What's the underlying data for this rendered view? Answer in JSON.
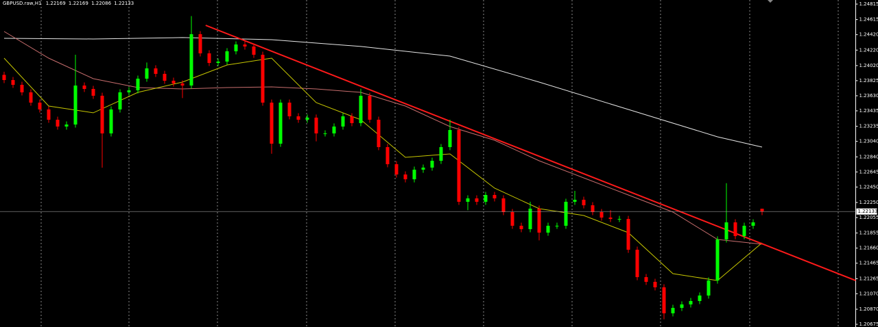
{
  "chart_data": {
    "type": "candlestick",
    "symbol": "GBPUSD.raw,H1",
    "up_color": "#00ff00",
    "down_color": "#ff0000",
    "ylim": [
      1.2064,
      1.24868
    ],
    "yticks": [
      {
        "value": 1.24815,
        "label": "1.24815"
      },
      {
        "value": 1.24615,
        "label": "1.24615"
      },
      {
        "value": 1.2442,
        "label": "1.24420"
      },
      {
        "value": 1.2422,
        "label": "1.24220"
      },
      {
        "value": 1.2402,
        "label": "1.24020"
      },
      {
        "value": 1.23825,
        "label": "1.23825"
      },
      {
        "value": 1.2363,
        "label": "1.23630"
      },
      {
        "value": 1.23435,
        "label": "1.23435"
      },
      {
        "value": 1.23235,
        "label": "1.23235"
      },
      {
        "value": 1.2304,
        "label": "1.23040"
      },
      {
        "value": 1.2284,
        "label": "1.22840"
      },
      {
        "value": 1.22645,
        "label": "1.22645"
      },
      {
        "value": 1.2245,
        "label": "1.22450"
      },
      {
        "value": 1.2225,
        "label": "1.22250"
      },
      {
        "value": 1.22055,
        "label": "1.22055"
      },
      {
        "value": 1.21855,
        "label": "1.21855"
      },
      {
        "value": 1.2166,
        "label": "1.21660"
      },
      {
        "value": 1.21465,
        "label": "1.21465"
      },
      {
        "value": 1.21265,
        "label": "1.21265"
      },
      {
        "value": 1.2107,
        "label": "1.21070"
      },
      {
        "value": 1.2087,
        "label": "1.20870"
      },
      {
        "value": 1.20675,
        "label": "1.20675"
      }
    ],
    "candles": [
      [
        1.239,
        1.2394,
        1.23793,
        1.23833
      ],
      [
        1.23833,
        1.23873,
        1.23731,
        1.23771
      ],
      [
        1.23771,
        1.23811,
        1.23634,
        1.23674
      ],
      [
        1.23674,
        1.23714,
        1.23501,
        1.23541
      ],
      [
        1.23541,
        1.23581,
        1.23413,
        1.23453
      ],
      [
        1.23453,
        1.23493,
        1.2328,
        1.2332
      ],
      [
        1.2332,
        1.2336,
        1.23192,
        1.23232
      ],
      [
        1.23232,
        1.23298,
        1.23192,
        1.23258
      ],
      [
        1.23258,
        1.2416,
        1.23218,
        1.23762
      ],
      [
        1.23762,
        1.23802,
        1.23678,
        1.23718
      ],
      [
        1.23718,
        1.23758,
        1.2359,
        1.2363
      ],
      [
        1.2363,
        1.2367,
        1.227,
        1.23143
      ],
      [
        1.23143,
        1.23493,
        1.23103,
        1.23453
      ],
      [
        1.23453,
        1.23714,
        1.23413,
        1.23674
      ],
      [
        1.23674,
        1.2374,
        1.23634,
        1.237
      ],
      [
        1.237,
        1.23891,
        1.2366,
        1.23851
      ],
      [
        1.23851,
        1.2406,
        1.23811,
        1.23984
      ],
      [
        1.23984,
        1.24024,
        1.23873,
        1.23913
      ],
      [
        1.23913,
        1.23953,
        1.23784,
        1.23824
      ],
      [
        1.23824,
        1.23864,
        1.23749,
        1.23789
      ],
      [
        1.23789,
        1.23829,
        1.236,
        1.23762
      ],
      [
        1.23762,
        1.2466,
        1.23722,
        1.24426
      ],
      [
        1.24426,
        1.24466,
        1.24138,
        1.24178
      ],
      [
        1.24178,
        1.24218,
        1.24014,
        1.24054
      ],
      [
        1.24054,
        1.24112,
        1.24014,
        1.24072
      ],
      [
        1.24072,
        1.24245,
        1.24032,
        1.24205
      ],
      [
        1.24205,
        1.24333,
        1.24165,
        1.24293
      ],
      [
        1.24293,
        1.24333,
        1.24227,
        1.24267
      ],
      [
        1.24267,
        1.24307,
        1.2412,
        1.2416
      ],
      [
        1.2416,
        1.242,
        1.23501,
        1.23541
      ],
      [
        1.23541,
        1.23581,
        1.2288,
        1.2301
      ],
      [
        1.2301,
        1.23581,
        1.2297,
        1.23541
      ],
      [
        1.23541,
        1.23581,
        1.23324,
        1.23364
      ],
      [
        1.23364,
        1.23404,
        1.2328,
        1.2332
      ],
      [
        1.2332,
        1.23387,
        1.2328,
        1.23347
      ],
      [
        1.23347,
        1.23387,
        1.2304,
        1.23143
      ],
      [
        1.23143,
        1.23183,
        1.23103,
        1.23143
      ],
      [
        1.23143,
        1.23272,
        1.23103,
        1.23232
      ],
      [
        1.23232,
        1.23404,
        1.23192,
        1.23364
      ],
      [
        1.23364,
        1.23404,
        1.23236,
        1.23276
      ],
      [
        1.23276,
        1.2372,
        1.23236,
        1.2363
      ],
      [
        1.2363,
        1.2367,
        1.2328,
        1.2332
      ],
      [
        1.2332,
        1.2336,
        1.22926,
        1.22966
      ],
      [
        1.22966,
        1.23006,
        1.22705,
        1.22745
      ],
      [
        1.22745,
        1.22785,
        1.22572,
        1.22612
      ],
      [
        1.22612,
        1.22652,
        1.2251,
        1.2255
      ],
      [
        1.2255,
        1.22714,
        1.2251,
        1.22674
      ],
      [
        1.22674,
        1.22741,
        1.22634,
        1.22701
      ],
      [
        1.22701,
        1.22829,
        1.22661,
        1.22789
      ],
      [
        1.22789,
        1.23006,
        1.22749,
        1.22966
      ],
      [
        1.22966,
        1.2332,
        1.22926,
        1.23187
      ],
      [
        1.23187,
        1.23227,
        1.22219,
        1.22259
      ],
      [
        1.22259,
        1.22343,
        1.2215,
        1.22303
      ],
      [
        1.22303,
        1.22343,
        1.22219,
        1.22259
      ],
      [
        1.22259,
        1.22387,
        1.22219,
        1.22347
      ],
      [
        1.22347,
        1.22387,
        1.22263,
        1.22303
      ],
      [
        1.22303,
        1.22343,
        1.22086,
        1.22126
      ],
      [
        1.22126,
        1.22166,
        1.21909,
        1.21949
      ],
      [
        1.21949,
        1.21989,
        1.21865,
        1.21905
      ],
      [
        1.21905,
        1.2226,
        1.21865,
        1.2217
      ],
      [
        1.2217,
        1.2221,
        1.2176,
        1.2186
      ],
      [
        1.2186,
        1.21989,
        1.2182,
        1.21949
      ],
      [
        1.21949,
        1.21989,
        1.21909,
        1.21949
      ],
      [
        1.21949,
        1.22299,
        1.21909,
        1.22259
      ],
      [
        1.22259,
        1.224,
        1.22219,
        1.22285
      ],
      [
        1.22285,
        1.22325,
        1.22174,
        1.22214
      ],
      [
        1.22214,
        1.22254,
        1.22086,
        1.22126
      ],
      [
        1.22126,
        1.22166,
        1.22015,
        1.22055
      ],
      [
        1.22055,
        1.2215,
        1.21997,
        1.22037
      ],
      [
        1.22037,
        1.22077,
        1.21997,
        1.22037
      ],
      [
        1.22037,
        1.22077,
        1.21599,
        1.21639
      ],
      [
        1.21639,
        1.21679,
        1.21245,
        1.21285
      ],
      [
        1.21285,
        1.21325,
        1.21184,
        1.21224
      ],
      [
        1.21224,
        1.21264,
        1.21113,
        1.21153
      ],
      [
        1.21153,
        1.21193,
        1.2074,
        1.20817
      ],
      [
        1.20817,
        1.20927,
        1.20777,
        1.20887
      ],
      [
        1.20887,
        1.20972,
        1.20847,
        1.20932
      ],
      [
        1.20932,
        1.21016,
        1.20892,
        1.20976
      ],
      [
        1.20976,
        1.21087,
        1.20936,
        1.21047
      ],
      [
        1.21047,
        1.21281,
        1.21007,
        1.21241
      ],
      [
        1.21241,
        1.21812,
        1.21201,
        1.21772
      ],
      [
        1.21772,
        1.225,
        1.21732,
        1.21993
      ],
      [
        1.21993,
        1.22033,
        1.21776,
        1.21816
      ],
      [
        1.21816,
        1.21989,
        1.21776,
        1.21949
      ],
      [
        1.21949,
        1.22033,
        1.21909,
        1.21993
      ],
      [
        1.22169,
        1.22169,
        1.22086,
        1.22133
      ]
    ],
    "overlays": [
      {
        "color": "#e8e8e8",
        "x": [
          0,
          10,
          20,
          30,
          40,
          50,
          60,
          70,
          80,
          85
        ],
        "values": [
          1.24373,
          1.24364,
          1.24382,
          1.24355,
          1.24267,
          1.24143,
          1.23807,
          1.23453,
          1.23099,
          1.22966
        ]
      },
      {
        "color": "#c86e6e",
        "x": [
          0,
          5,
          10,
          15,
          20,
          25,
          30,
          35,
          40,
          45,
          50,
          55,
          60,
          65,
          70,
          75,
          80,
          85
        ],
        "values": [
          1.24461,
          1.24116,
          1.23851,
          1.23736,
          1.23718,
          1.23736,
          1.23745,
          1.23718,
          1.23674,
          1.23497,
          1.23232,
          1.23055,
          1.22789,
          1.22568,
          1.22347,
          1.22126,
          1.21772,
          1.2171
        ]
      },
      {
        "color": "#c8c800",
        "x": [
          0,
          5,
          10,
          15,
          20,
          25,
          30,
          35,
          40,
          45,
          50,
          55,
          60,
          65,
          70,
          75,
          80,
          85
        ],
        "values": [
          1.24116,
          1.23497,
          1.23409,
          1.23674,
          1.23807,
          1.24028,
          1.24116,
          1.23541,
          1.2332,
          1.22834,
          1.22878,
          1.22436,
          1.2217,
          1.22082,
          1.2186,
          1.2133,
          1.21241,
          1.21728
        ]
      },
      {
        "color": "#ff1a1a",
        "x": [
          22.6,
          95.5
        ],
        "values": [
          1.24541,
          1.21241
        ]
      }
    ]
  }
}
